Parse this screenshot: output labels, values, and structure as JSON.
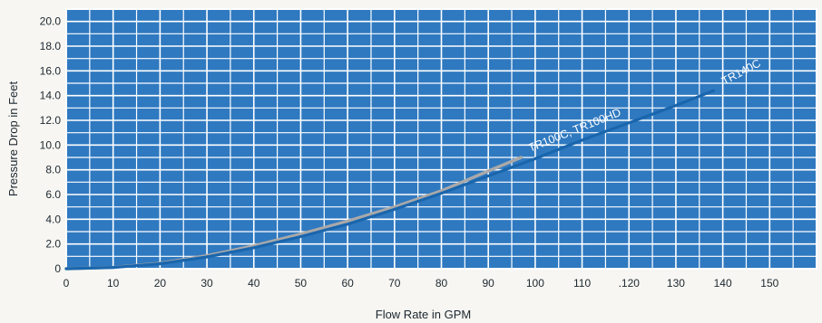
{
  "chart_data": {
    "type": "line",
    "title": "",
    "xlabel": "Flow Rate in GPM",
    "ylabel": "Pressure Drop in Feet",
    "xlim": [
      0,
      160
    ],
    "ylim": [
      0,
      21
    ],
    "x_ticks": [
      0,
      10,
      20,
      30,
      40,
      50,
      60,
      70,
      80,
      90,
      100,
      110,
      120,
      130,
      140,
      150
    ],
    "x_tick_labels": [
      "0",
      "10",
      "20",
      "30",
      "40",
      "50",
      "60",
      "70",
      "80",
      "90",
      "100",
      "110",
      ".120",
      "130",
      "140",
      "150"
    ],
    "y_ticks": [
      0,
      2,
      4,
      6,
      8,
      10,
      12,
      14,
      16,
      18,
      20
    ],
    "y_tick_labels": [
      "0",
      "2.0",
      "4.0",
      "6.0",
      "8.0",
      "10.0",
      "12.0",
      "14.0",
      "16.0",
      "18.0",
      "20.0"
    ],
    "grid": true,
    "colors": {
      "background": "#2f79c0",
      "grid": "#ffffff",
      "tr140c": "#1a66ad",
      "tr100c": "#a9a9a9"
    },
    "series": [
      {
        "name": "TR140C",
        "color": "#1a66ad",
        "x": [
          0,
          10,
          20,
          30,
          40,
          50,
          60,
          70,
          80,
          90,
          100,
          110,
          120,
          130,
          138
        ],
        "y": [
          0,
          0.1,
          0.4,
          0.95,
          1.7,
          2.6,
          3.6,
          4.8,
          6.1,
          7.5,
          8.9,
          10.4,
          11.8,
          13.2,
          14.4
        ]
      },
      {
        "name": "TR100C, TR100HD",
        "color": "#a9a9a9",
        "x": [
          0,
          10,
          20,
          30,
          40,
          50,
          60,
          70,
          80,
          90,
          97
        ],
        "y": [
          0,
          0.1,
          0.45,
          1.05,
          1.85,
          2.8,
          3.85,
          5.0,
          6.3,
          7.9,
          9.0
        ]
      }
    ]
  }
}
